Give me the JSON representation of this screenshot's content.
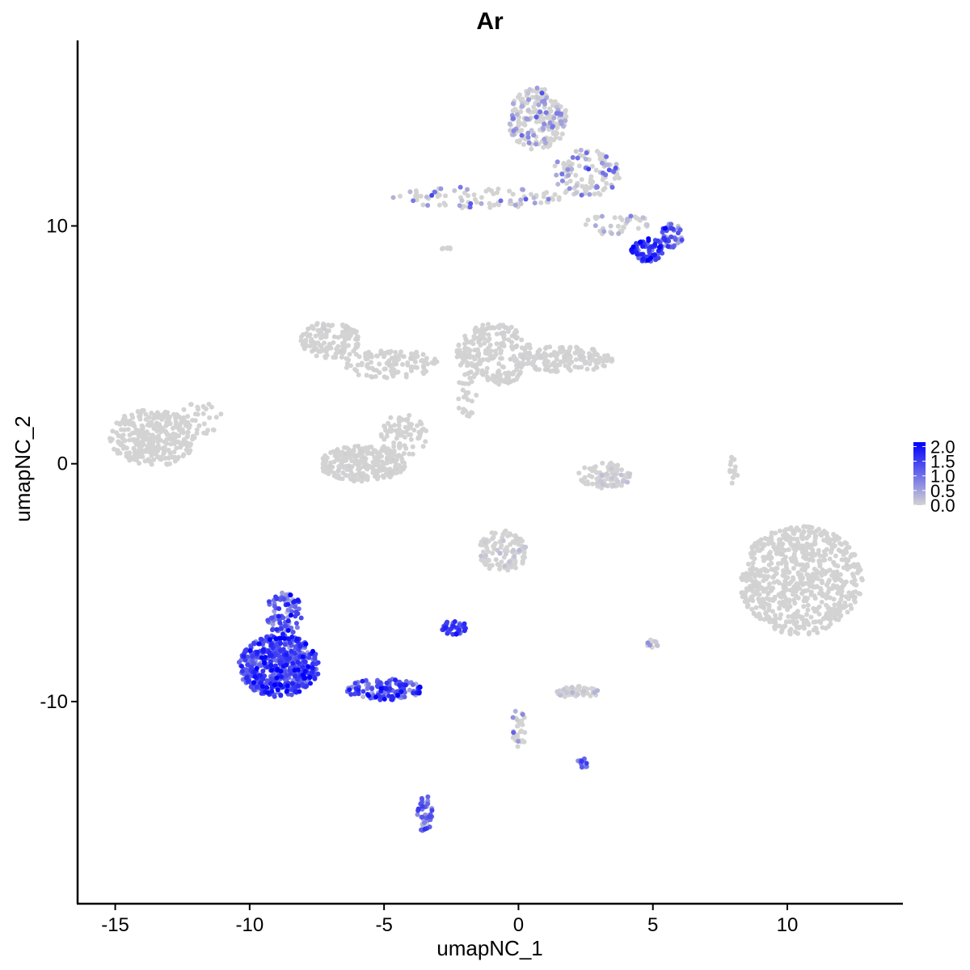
{
  "chart_data": {
    "type": "scatter",
    "title": "Ar",
    "xlabel": "umapNC_1",
    "ylabel": "umapNC_2",
    "xlim": [
      -16.4,
      14.3
    ],
    "ylim": [
      -18.5,
      17.8
    ],
    "x_ticks": [
      -15,
      -10,
      -5,
      0,
      5,
      10
    ],
    "x_tick_labels": [
      "-15",
      "-10",
      "-5",
      "0",
      "5",
      "10"
    ],
    "y_ticks": [
      -10,
      0,
      10
    ],
    "y_tick_labels": [
      "-10",
      "0",
      "10"
    ],
    "grid": false,
    "legend": {
      "placement": "right",
      "title": "",
      "ticks": [
        2.0,
        1.5,
        1.0,
        0.5,
        0.0
      ],
      "tick_labels": [
        "2.0",
        "1.5",
        "1.0",
        "0.5",
        "0.0"
      ],
      "range": [
        0,
        2.15
      ]
    },
    "color_scale": {
      "low": "#d3d3d3",
      "high": "#0000ff"
    },
    "clusters": [
      {
        "cx": 0.7,
        "cy": 14.5,
        "rx": 1.1,
        "ry": 1.3,
        "n": 220,
        "expr": 0.25,
        "sd": 0.45
      },
      {
        "cx": 2.5,
        "cy": 12.2,
        "rx": 1.3,
        "ry": 1.0,
        "n": 110,
        "expr": 0.35,
        "sd": 0.5
      },
      {
        "cx": -1.5,
        "cy": 11.2,
        "rx": 3.2,
        "ry": 0.45,
        "n": 90,
        "expr": 0.3,
        "sd": 0.45
      },
      {
        "cx": 3.7,
        "cy": 10.1,
        "rx": 1.2,
        "ry": 0.5,
        "n": 40,
        "expr": 0.5,
        "sd": 0.5
      },
      {
        "cx": 4.8,
        "cy": 9.0,
        "rx": 0.6,
        "ry": 0.5,
        "n": 70,
        "expr": 1.5,
        "sd": 0.35
      },
      {
        "cx": 5.7,
        "cy": 9.6,
        "rx": 0.45,
        "ry": 0.5,
        "n": 45,
        "expr": 0.9,
        "sd": 0.45
      },
      {
        "cx": -13.6,
        "cy": 1.1,
        "rx": 1.6,
        "ry": 1.2,
        "n": 320,
        "expr": 0.0,
        "sd": 0.0
      },
      {
        "cx": -11.8,
        "cy": 1.9,
        "rx": 0.8,
        "ry": 0.7,
        "n": 30,
        "expr": 0.0,
        "sd": 0.0
      },
      {
        "cx": -7.0,
        "cy": 5.2,
        "rx": 1.1,
        "ry": 0.8,
        "n": 130,
        "expr": 0.0,
        "sd": 0.02
      },
      {
        "cx": -4.8,
        "cy": 4.2,
        "rx": 1.8,
        "ry": 0.6,
        "n": 120,
        "expr": 0.0,
        "sd": 0.02
      },
      {
        "cx": -5.8,
        "cy": 0.0,
        "rx": 1.6,
        "ry": 0.75,
        "n": 260,
        "expr": 0.0,
        "sd": 0.02
      },
      {
        "cx": -4.3,
        "cy": 1.2,
        "rx": 0.9,
        "ry": 0.9,
        "n": 80,
        "expr": 0.0,
        "sd": 0.0
      },
      {
        "cx": -0.9,
        "cy": 4.6,
        "rx": 1.4,
        "ry": 1.3,
        "n": 230,
        "expr": 0.0,
        "sd": 0.02
      },
      {
        "cx": 1.7,
        "cy": 4.4,
        "rx": 1.8,
        "ry": 0.55,
        "n": 170,
        "expr": 0.0,
        "sd": 0.02
      },
      {
        "cx": -1.9,
        "cy": 2.8,
        "rx": 0.4,
        "ry": 1.0,
        "n": 25,
        "expr": 0.0,
        "sd": 0.0
      },
      {
        "cx": 3.2,
        "cy": -0.5,
        "rx": 1.0,
        "ry": 0.55,
        "n": 90,
        "expr": 0.03,
        "sd": 0.1
      },
      {
        "cx": 10.5,
        "cy": -4.9,
        "rx": 2.3,
        "ry": 2.3,
        "n": 720,
        "expr": 0.0,
        "sd": 0.01
      },
      {
        "cx": -0.6,
        "cy": -3.7,
        "rx": 0.9,
        "ry": 0.9,
        "n": 110,
        "expr": 0.03,
        "sd": 0.12
      },
      {
        "cx": -2.4,
        "cy": -6.9,
        "rx": 0.5,
        "ry": 0.3,
        "n": 45,
        "expr": 1.4,
        "sd": 0.3
      },
      {
        "cx": -8.9,
        "cy": -8.5,
        "rx": 1.5,
        "ry": 1.3,
        "n": 560,
        "expr": 1.3,
        "sd": 0.45
      },
      {
        "cx": -8.7,
        "cy": -6.3,
        "rx": 0.7,
        "ry": 0.9,
        "n": 90,
        "expr": 1.1,
        "sd": 0.5
      },
      {
        "cx": -5.0,
        "cy": -9.5,
        "rx": 1.4,
        "ry": 0.45,
        "n": 130,
        "expr": 1.2,
        "sd": 0.45
      },
      {
        "cx": -3.5,
        "cy": -14.7,
        "rx": 0.3,
        "ry": 0.8,
        "n": 40,
        "expr": 1.1,
        "sd": 0.4
      },
      {
        "cx": 2.2,
        "cy": -9.6,
        "rx": 0.8,
        "ry": 0.25,
        "n": 55,
        "expr": 0.05,
        "sd": 0.15
      },
      {
        "cx": 0.0,
        "cy": -11.3,
        "rx": 0.3,
        "ry": 1.0,
        "n": 30,
        "expr": 0.4,
        "sd": 0.5
      },
      {
        "cx": 2.4,
        "cy": -12.6,
        "rx": 0.25,
        "ry": 0.2,
        "n": 12,
        "expr": 1.2,
        "sd": 0.3
      },
      {
        "cx": 5.0,
        "cy": -7.5,
        "rx": 0.25,
        "ry": 0.25,
        "n": 12,
        "expr": 0.1,
        "sd": 0.3
      },
      {
        "cx": 8.0,
        "cy": -0.3,
        "rx": 0.15,
        "ry": 0.7,
        "n": 15,
        "expr": 0.0,
        "sd": 0.0
      },
      {
        "cx": -2.7,
        "cy": 9.0,
        "rx": 0.2,
        "ry": 0.15,
        "n": 8,
        "expr": 0.0,
        "sd": 0.0
      }
    ]
  }
}
